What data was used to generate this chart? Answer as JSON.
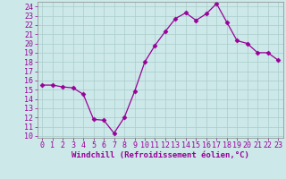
{
  "x": [
    0,
    1,
    2,
    3,
    4,
    5,
    6,
    7,
    8,
    9,
    10,
    11,
    12,
    13,
    14,
    15,
    16,
    17,
    18,
    19,
    20,
    21,
    22,
    23
  ],
  "y": [
    15.5,
    15.5,
    15.3,
    15.2,
    14.5,
    11.8,
    11.7,
    10.3,
    12.0,
    14.8,
    18.0,
    19.8,
    21.3,
    22.7,
    23.3,
    22.5,
    23.2,
    24.3,
    22.3,
    20.3,
    20.0,
    19.0,
    19.0,
    18.2
  ],
  "line_color": "#990099",
  "marker": "D",
  "marker_size": 2.5,
  "bg_color": "#cce8e8",
  "grid_color": "#aacccc",
  "xlabel": "Windchill (Refroidissement éolien,°C)",
  "ylabel_ticks": [
    10,
    11,
    12,
    13,
    14,
    15,
    16,
    17,
    18,
    19,
    20,
    21,
    22,
    23,
    24
  ],
  "xticks": [
    0,
    1,
    2,
    3,
    4,
    5,
    6,
    7,
    8,
    9,
    10,
    11,
    12,
    13,
    14,
    15,
    16,
    17,
    18,
    19,
    20,
    21,
    22,
    23
  ],
  "xlim": [
    -0.5,
    23.5
  ],
  "ylim": [
    9.8,
    24.5
  ],
  "xlabel_color": "#990099",
  "tick_color": "#990099",
  "label_fontsize": 6.5,
  "tick_fontsize": 6.0
}
